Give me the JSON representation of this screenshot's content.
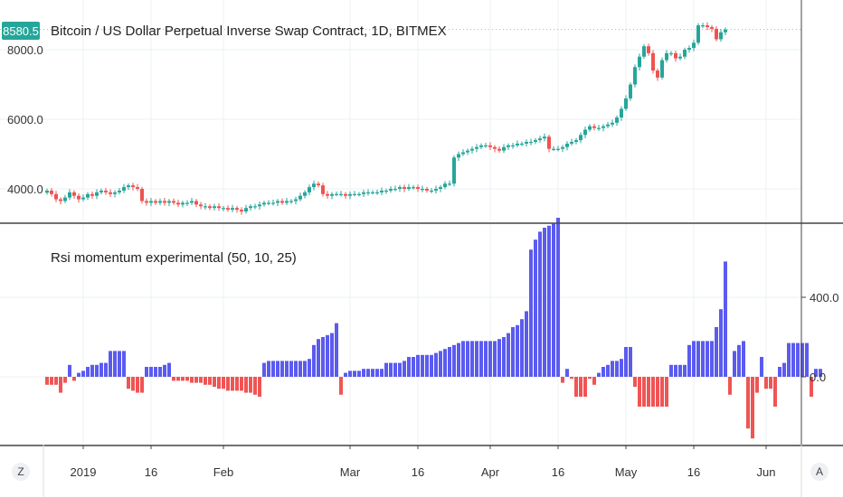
{
  "main_chart": {
    "title": "Bitcoin / US Dollar Perpetual Inverse Swap Contract, 1D, BITMEX",
    "last_price": "8580.5",
    "last_price_color": "#26a69a",
    "up_color": "#26a69a",
    "down_color": "#ef5350"
  },
  "indicator": {
    "title": "Rsi momentum experimental (50, 10, 25)",
    "positive_color": "#5b5bf0",
    "negative_color": "#f05454"
  },
  "time_axis": {
    "labels": [
      "2019",
      "16",
      "Feb",
      "Mar",
      "16",
      "Apr",
      "16",
      "May",
      "16",
      "Jun"
    ]
  },
  "buttons": {
    "left": "Z",
    "right": "A"
  },
  "chart_data": [
    {
      "type": "candlestick",
      "title": "Bitcoin / US Dollar Perpetual Inverse Swap Contract, 1D, BITMEX",
      "y_ticks": [
        "4000.0",
        "6000.0",
        "8000.0"
      ],
      "ylim": [
        3250,
        8900
      ],
      "x_start": "2018-12-24",
      "x_ticks": [
        {
          "date": "2019-01-01",
          "label": "2019"
        },
        {
          "date": "2019-01-16",
          "label": "16"
        },
        {
          "date": "2019-02-01",
          "label": "Feb"
        },
        {
          "date": "2019-03-01",
          "label": "Mar"
        },
        {
          "date": "2019-03-16",
          "label": "16"
        },
        {
          "date": "2019-04-01",
          "label": "Apr"
        },
        {
          "date": "2019-04-16",
          "label": "16"
        },
        {
          "date": "2019-05-01",
          "label": "May"
        },
        {
          "date": "2019-05-16",
          "label": "16"
        },
        {
          "date": "2019-06-01",
          "label": "Jun"
        }
      ],
      "closes": [
        3950,
        3850,
        3700,
        3650,
        3750,
        3900,
        3800,
        3700,
        3750,
        3850,
        3800,
        3900,
        3950,
        3900,
        3850,
        3900,
        3950,
        4050,
        4100,
        4050,
        4000,
        3650,
        3600,
        3650,
        3600,
        3650,
        3600,
        3650,
        3600,
        3550,
        3600,
        3600,
        3650,
        3550,
        3500,
        3500,
        3450,
        3500,
        3450,
        3450,
        3400,
        3450,
        3400,
        3350,
        3450,
        3500,
        3500,
        3550,
        3600,
        3600,
        3600,
        3650,
        3600,
        3650,
        3650,
        3700,
        3800,
        3900,
        4050,
        4150,
        4100,
        3850,
        3800,
        3850,
        3850,
        3850,
        3800,
        3850,
        3850,
        3850,
        3900,
        3900,
        3900,
        3900,
        3950,
        3950,
        4000,
        4000,
        4050,
        4000,
        4050,
        4050,
        4000,
        4000,
        3950,
        3950,
        4000,
        4050,
        4150,
        4150,
        4900,
        5000,
        5050,
        5100,
        5150,
        5200,
        5250,
        5250,
        5200,
        5150,
        5100,
        5200,
        5250,
        5250,
        5300,
        5300,
        5350,
        5350,
        5400,
        5450,
        5500,
        5150,
        5150,
        5150,
        5200,
        5300,
        5350,
        5400,
        5550,
        5700,
        5800,
        5750,
        5750,
        5800,
        5850,
        5900,
        6050,
        6300,
        6600,
        7000,
        7500,
        7800,
        8100,
        7900,
        7400,
        7200,
        7700,
        7900,
        7900,
        7750,
        7800,
        8000,
        8050,
        8200,
        8700,
        8700,
        8650,
        8600,
        8300,
        8500,
        8580
      ],
      "last_price": "8580.5"
    },
    {
      "type": "bar",
      "title": "Rsi momentum experimental (50, 10, 25)",
      "y_ticks": [
        "0.0",
        "400.0"
      ],
      "ylim": [
        -380,
        870
      ],
      "values": [
        -40,
        -40,
        -40,
        -80,
        -30,
        60,
        -20,
        20,
        30,
        50,
        60,
        60,
        70,
        70,
        130,
        130,
        130,
        130,
        -60,
        -70,
        -80,
        -80,
        50,
        50,
        50,
        50,
        60,
        70,
        -20,
        -20,
        -20,
        -20,
        -30,
        -30,
        -30,
        -40,
        -40,
        -50,
        -60,
        -60,
        -70,
        -70,
        -70,
        -70,
        -80,
        -80,
        -90,
        -100,
        70,
        80,
        80,
        80,
        80,
        80,
        80,
        80,
        80,
        80,
        90,
        160,
        190,
        200,
        210,
        220,
        270,
        -90,
        20,
        30,
        30,
        30,
        40,
        40,
        40,
        40,
        40,
        70,
        70,
        70,
        70,
        80,
        100,
        100,
        110,
        110,
        110,
        110,
        120,
        130,
        140,
        150,
        160,
        170,
        180,
        180,
        180,
        180,
        180,
        180,
        180,
        180,
        190,
        200,
        220,
        250,
        260,
        290,
        330,
        640,
        690,
        730,
        750,
        760,
        770,
        800,
        -30,
        40,
        -10,
        -100,
        -100,
        -100,
        -10,
        -40,
        20,
        50,
        60,
        80,
        80,
        90,
        150,
        150,
        -50,
        -150,
        -150,
        -150,
        -150,
        -150,
        -150,
        -150,
        60,
        60,
        60,
        60,
        160,
        180,
        180,
        180,
        180,
        180,
        250,
        340,
        580,
        -90,
        130,
        160,
        180,
        -260,
        -310,
        -80,
        100,
        -60,
        -60,
        -150,
        50,
        70,
        170,
        170,
        170,
        170,
        170,
        -100,
        40,
        40
      ]
    }
  ]
}
